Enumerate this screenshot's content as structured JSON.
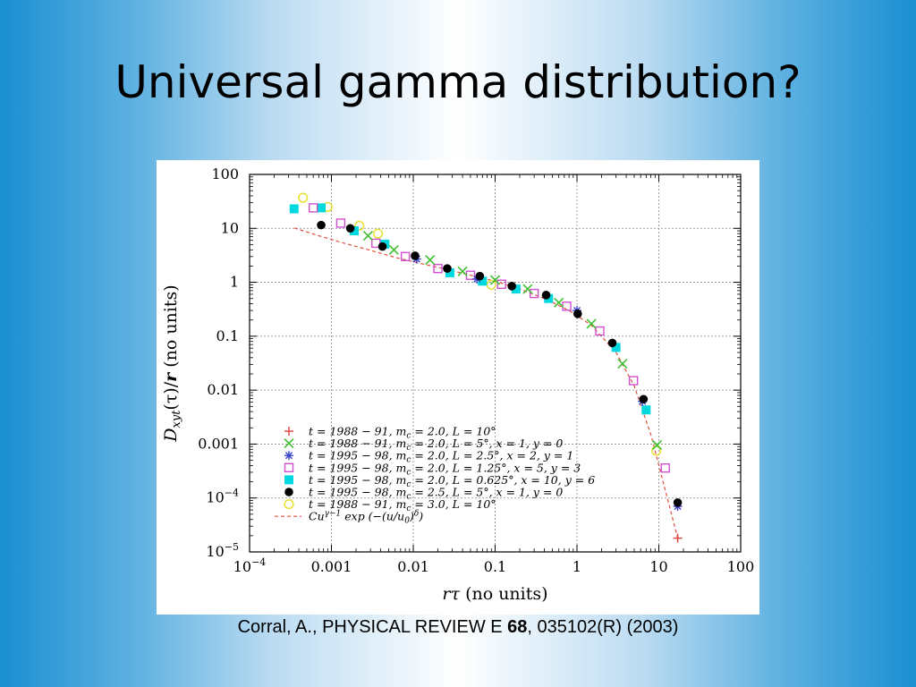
{
  "slide": {
    "title": "Universal gamma distribution?",
    "citation": {
      "prefix": "Corral, A., PHYSICAL REVIEW E ",
      "volume": "68",
      "suffix": ", 035102(R) (2003)"
    }
  },
  "chart_data": {
    "type": "scatter",
    "xscale": "log",
    "yscale": "log",
    "xlim": [
      0.0001,
      100
    ],
    "ylim": [
      1e-05,
      100
    ],
    "grid": true,
    "legend_position": "bottom-left",
    "xlabel": {
      "main": "r",
      "symbol": "τ",
      "unit": " (no units)"
    },
    "ylabel": {
      "main": "D",
      "sub": "xyt",
      "mid": "(τ)/",
      "bold": "r",
      "unit": " (no units)"
    },
    "x_ticks": [
      {
        "value": 0.0001,
        "label": "10",
        "sup": "−4"
      },
      {
        "value": 0.001,
        "label": "0.001",
        "sup": ""
      },
      {
        "value": 0.01,
        "label": "0.01",
        "sup": ""
      },
      {
        "value": 0.1,
        "label": "0.1",
        "sup": ""
      },
      {
        "value": 1,
        "label": "1",
        "sup": ""
      },
      {
        "value": 10,
        "label": "10",
        "sup": ""
      },
      {
        "value": 100,
        "label": "100",
        "sup": ""
      }
    ],
    "y_ticks": [
      {
        "value": 100,
        "label": "100",
        "sup": ""
      },
      {
        "value": 10,
        "label": "10",
        "sup": ""
      },
      {
        "value": 1,
        "label": "1",
        "sup": ""
      },
      {
        "value": 0.1,
        "label": "0.1",
        "sup": ""
      },
      {
        "value": 0.01,
        "label": "0.01",
        "sup": ""
      },
      {
        "value": 0.001,
        "label": "0.001",
        "sup": ""
      },
      {
        "value": 0.0001,
        "label": "10",
        "sup": "−4"
      },
      {
        "value": 1e-05,
        "label": "10",
        "sup": "−5"
      }
    ],
    "series": [
      {
        "name": "t = 1988 − 91, m_c = 2.0, L = 10°",
        "marker": "plus",
        "color": "#e0403a",
        "x": [
          17
        ],
        "y": [
          1.8e-05
        ]
      },
      {
        "name": "t = 1988 − 91, m_c = 2.0, L = 5°, x = 1, y = 0",
        "marker": "cross",
        "color": "#3fc030",
        "x": [
          0.0028,
          0.0058,
          0.016,
          0.04,
          0.1,
          0.25,
          0.6,
          1.5,
          3.6,
          9.5
        ],
        "y": [
          7.3,
          4.0,
          2.6,
          1.6,
          1.1,
          0.75,
          0.42,
          0.17,
          0.031,
          0.00096
        ]
      },
      {
        "name": "t = 1995 − 98, m_c = 2.0, L = 2.5°, x = 2, y = 1",
        "marker": "asterisk",
        "color": "#3a44cc",
        "x": [
          0.011,
          0.06,
          1.0,
          6.3,
          17
        ],
        "y": [
          2.7,
          1.15,
          0.3,
          0.0062,
          7e-05
        ]
      },
      {
        "name": "t = 1995 − 98, m_c = 2.0, L = 1.25°, x = 5, y = 3",
        "marker": "square-open",
        "color": "#d050d0",
        "x": [
          0.0006,
          0.0013,
          0.0035,
          0.008,
          0.02,
          0.05,
          0.12,
          0.3,
          0.75,
          1.9,
          4.9,
          12
        ],
        "y": [
          24,
          12.5,
          5.3,
          3.0,
          1.8,
          1.35,
          0.92,
          0.62,
          0.36,
          0.125,
          0.015,
          0.00036
        ]
      },
      {
        "name": "t = 1995 − 98, m_c = 2.0, L = 0.625°, x = 10, y = 6",
        "marker": "square-filled",
        "color": "#00d8e0",
        "x": [
          0.00035,
          0.00075,
          0.0019,
          0.0045,
          0.028,
          0.07,
          0.18,
          0.45,
          3.0,
          7.0
        ],
        "y": [
          23,
          24,
          9.0,
          5.1,
          1.5,
          1.05,
          0.75,
          0.5,
          0.062,
          0.0043
        ]
      },
      {
        "name": "t = 1995 − 98, m_c = 2.5, L = 5°, x = 1, y = 0",
        "marker": "circle-filled",
        "color": "#000000",
        "x": [
          0.00075,
          0.0017,
          0.0042,
          0.0105,
          0.026,
          0.065,
          0.16,
          0.42,
          1.02,
          2.7,
          6.5,
          17
        ],
        "y": [
          11.5,
          10.0,
          4.6,
          3.1,
          1.8,
          1.3,
          0.85,
          0.58,
          0.26,
          0.075,
          0.0068,
          8.2e-05
        ]
      },
      {
        "name": "t = 1988 − 91, m_c = 3.0, L = 10°",
        "marker": "circle-open",
        "color": "#e6e030",
        "x": [
          0.00045,
          0.0009,
          0.0022,
          0.0037,
          0.09,
          9.3
        ],
        "y": [
          37,
          25,
          11.2,
          8.0,
          0.9,
          0.00075
        ]
      }
    ],
    "fit_curve": {
      "name": "Cu^(γ−1) exp(−(u/u₀)^δ)",
      "label_text": "Cu",
      "label_exp": "γ−1",
      "label_rest": " exp (−(u/u",
      "label_zero": "0",
      "label_close": ")",
      "label_delta": "δ",
      "label_end": ")",
      "color": "#e05040",
      "style": "dashed",
      "x": [
        0.00035,
        0.0007,
        0.0015,
        0.003,
        0.006,
        0.012,
        0.025,
        0.05,
        0.1,
        0.2,
        0.4,
        0.8,
        1.5,
        3.0,
        5.0,
        8.0,
        12.0,
        17.0
      ],
      "y": [
        10.2,
        7.3,
        5.2,
        3.9,
        2.9,
        2.25,
        1.75,
        1.35,
        1.05,
        0.75,
        0.5,
        0.3,
        0.16,
        0.05,
        0.012,
        0.0015,
        0.00014,
        1.8e-05
      ]
    },
    "legend_entries": [
      {
        "t": "t = 1988 − 91, m",
        "sub": "c",
        "rest": " = 2.0, L = 10°"
      },
      {
        "t": "t = 1988 − 91, m",
        "sub": "c",
        "rest": " = 2.0, L = 5°, x = 1, y = 0"
      },
      {
        "t": "t = 1995 − 98, m",
        "sub": "c",
        "rest": " = 2.0, L = 2.5°, x = 2, y = 1"
      },
      {
        "t": "t = 1995 − 98, m",
        "sub": "c",
        "rest": " = 2.0, L = 1.25°, x = 5, y = 3"
      },
      {
        "t": "t = 1995 − 98, m",
        "sub": "c",
        "rest": " = 2.0, L = 0.625°, x = 10, y = 6"
      },
      {
        "t": "t = 1995 − 98, m",
        "sub": "c",
        "rest": " = 2.5, L = 5°, x = 1, y = 0"
      },
      {
        "t": "t = 1988 − 91, m",
        "sub": "c",
        "rest": " = 3.0, L = 10°"
      }
    ]
  }
}
